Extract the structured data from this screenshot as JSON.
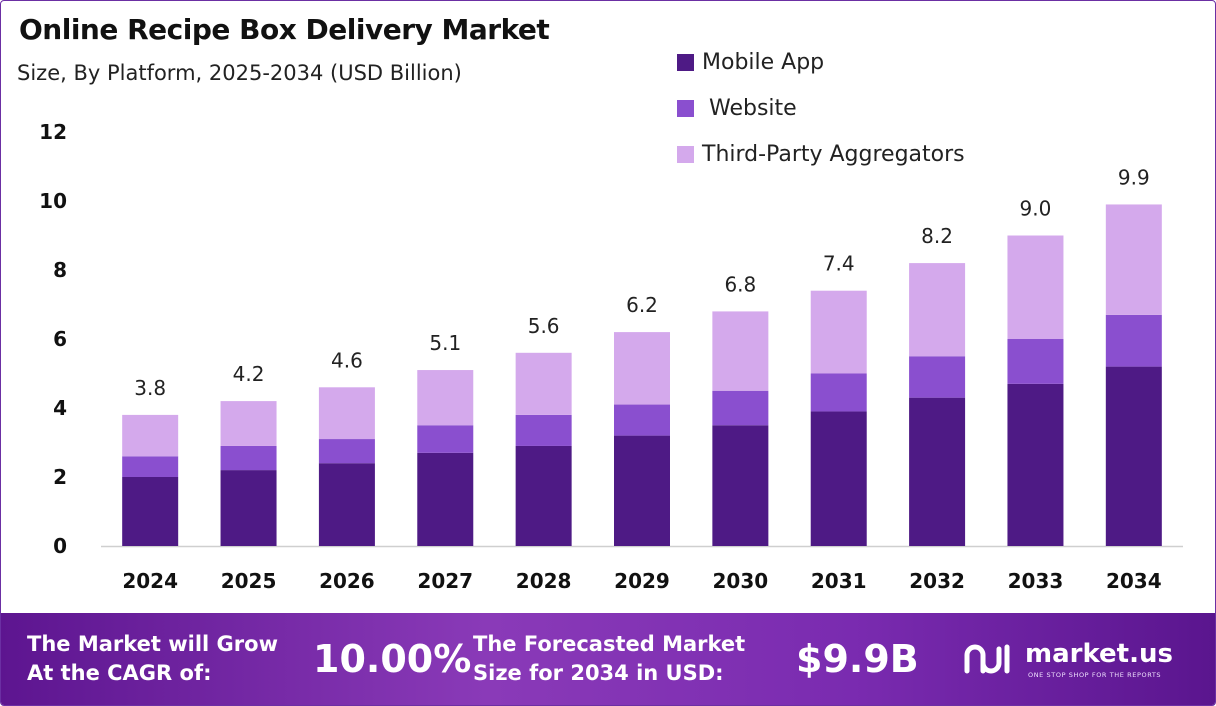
{
  "title": "Online Recipe Box Delivery Market",
  "subtitle": "Size, By Platform, 2025-2034 (USD Billion)",
  "colors": {
    "mobile_app": "#4e1a85",
    "website": "#8a4fcf",
    "third_party": "#d4a9ec"
  },
  "chart_data": {
    "type": "bar",
    "stacked": true,
    "categories": [
      "2024",
      "2025",
      "2026",
      "2027",
      "2028",
      "2029",
      "2030",
      "2031",
      "2032",
      "2033",
      "2034"
    ],
    "series": [
      {
        "name": "Mobile App",
        "values": [
          2.0,
          2.2,
          2.4,
          2.7,
          2.9,
          3.2,
          3.5,
          3.9,
          4.3,
          4.7,
          5.2
        ]
      },
      {
        "name": " Website",
        "values": [
          0.6,
          0.7,
          0.7,
          0.8,
          0.9,
          0.9,
          1.0,
          1.1,
          1.2,
          1.3,
          1.5
        ]
      },
      {
        "name": "Third-Party Aggregators",
        "values": [
          1.2,
          1.3,
          1.5,
          1.6,
          1.8,
          2.1,
          2.3,
          2.4,
          2.7,
          3.0,
          3.2
        ]
      }
    ],
    "totals": [
      "3.8",
      "4.2",
      "4.6",
      "5.1",
      "5.6",
      "6.2",
      "6.8",
      "7.4",
      "8.2",
      "9.0",
      "9.9"
    ],
    "y_ticks": [
      "0",
      "2",
      "4",
      "6",
      "8",
      "10",
      "12"
    ],
    "ylim": [
      0,
      12
    ],
    "grid": false,
    "legend": "top-right"
  },
  "footer": {
    "cagr_label_line1": "The Market will Grow",
    "cagr_label_line2": "At the CAGR of:",
    "cagr_value": "10.00%",
    "forecast_label_line1": "The Forecasted Market",
    "forecast_label_line2": "Size for 2034 in USD:",
    "forecast_value": "$9.9B",
    "brand_name": "market.us",
    "brand_tagline": "ONE STOP SHOP FOR THE REPORTS"
  }
}
